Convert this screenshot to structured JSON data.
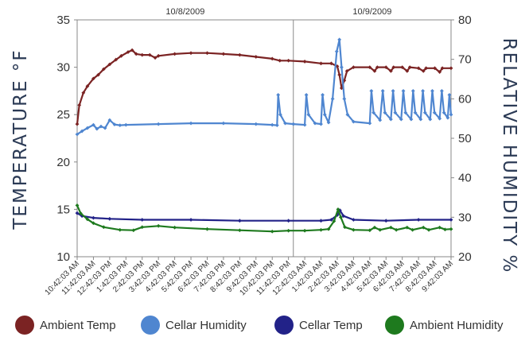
{
  "chart_data": {
    "type": "line",
    "y_left_label": "TEMPERATURE  °F",
    "y_right_label": "RELATIVE HUMIDITY %",
    "y_left_ticks": [
      "10",
      "15",
      "20",
      "25",
      "30",
      "35"
    ],
    "y_right_ticks": [
      "20",
      "30",
      "40",
      "50",
      "60",
      "70",
      "80"
    ],
    "y_left_lim": [
      10,
      35
    ],
    "y_right_lim": [
      20,
      80
    ],
    "date_labels": [
      "10/8/2009",
      "10/9/2009"
    ],
    "x_start": "2009-10-08T10:42:03",
    "x_end": "2009-10-09T09:42:03",
    "date_divider": "2009-10-09T00:00:00",
    "x_ticks": [
      "10:42:03 AM",
      "11:42:03 AM",
      "12:42:03 PM",
      "1:42:03 PM",
      "2:42:03 PM",
      "3:42:03 PM",
      "4:42:03 PM",
      "5:42:03 PM",
      "6:42:03 PM",
      "7:42:03 PM",
      "8:42:03 PM",
      "9:42:03 PM",
      "10:42:03 PM",
      "11:42:03 PM",
      "12:42:03 AM",
      "1:42:03 AM",
      "2:42:03 AM",
      "3:42:03 AM",
      "4:42:03 AM",
      "5:42:03 AM",
      "6:42:03 AM",
      "7:42:03 AM",
      "8:42:03 AM",
      "9:42:03 AM"
    ],
    "grid": false,
    "legend_position": "bottom",
    "series": [
      {
        "name": "Ambient Temp",
        "axis": "left",
        "color": "#7b2323",
        "marker": "diamond",
        "points": [
          [
            "2009-10-08T10:42:03",
            24.0
          ],
          [
            "2009-10-08T10:50:00",
            26.0
          ],
          [
            "2009-10-08T11:05:00",
            27.3
          ],
          [
            "2009-10-08T11:20:00",
            28.0
          ],
          [
            "2009-10-08T11:42:03",
            28.8
          ],
          [
            "2009-10-08T12:00:00",
            29.2
          ],
          [
            "2009-10-08T12:20:00",
            29.8
          ],
          [
            "2009-10-08T12:42:03",
            30.3
          ],
          [
            "2009-10-08T13:05:00",
            30.8
          ],
          [
            "2009-10-08T13:25:00",
            31.2
          ],
          [
            "2009-10-08T13:50:00",
            31.6
          ],
          [
            "2009-10-08T14:05:00",
            31.8
          ],
          [
            "2009-10-08T14:20:00",
            31.4
          ],
          [
            "2009-10-08T14:42:03",
            31.3
          ],
          [
            "2009-10-08T15:10:00",
            31.3
          ],
          [
            "2009-10-08T15:30:00",
            31.0
          ],
          [
            "2009-10-08T15:42:03",
            31.2
          ],
          [
            "2009-10-08T16:42:03",
            31.4
          ],
          [
            "2009-10-08T17:42:03",
            31.5
          ],
          [
            "2009-10-08T18:42:03",
            31.5
          ],
          [
            "2009-10-08T19:42:03",
            31.4
          ],
          [
            "2009-10-08T20:42:03",
            31.3
          ],
          [
            "2009-10-08T21:42:03",
            31.1
          ],
          [
            "2009-10-08T22:42:03",
            30.9
          ],
          [
            "2009-10-08T23:10:00",
            30.7
          ],
          [
            "2009-10-08T23:42:03",
            30.7
          ],
          [
            "2009-10-09T00:42:03",
            30.6
          ],
          [
            "2009-10-09T01:42:03",
            30.4
          ],
          [
            "2009-10-09T02:20:00",
            30.4
          ],
          [
            "2009-10-09T02:42:03",
            30.1
          ],
          [
            "2009-10-09T02:50:00",
            29.2
          ],
          [
            "2009-10-09T02:58:00",
            27.8
          ],
          [
            "2009-10-09T03:08:00",
            28.6
          ],
          [
            "2009-10-09T03:18:00",
            29.6
          ],
          [
            "2009-10-09T03:42:03",
            30.0
          ],
          [
            "2009-10-09T04:42:03",
            30.0
          ],
          [
            "2009-10-09T05:00:00",
            29.6
          ],
          [
            "2009-10-09T05:10:00",
            30.0
          ],
          [
            "2009-10-09T05:42:03",
            30.0
          ],
          [
            "2009-10-09T06:00:00",
            29.6
          ],
          [
            "2009-10-09T06:10:00",
            30.0
          ],
          [
            "2009-10-09T06:42:03",
            30.0
          ],
          [
            "2009-10-09T07:00:00",
            29.6
          ],
          [
            "2009-10-09T07:10:00",
            30.0
          ],
          [
            "2009-10-09T07:42:03",
            29.9
          ],
          [
            "2009-10-09T08:00:00",
            29.6
          ],
          [
            "2009-10-09T08:10:00",
            29.9
          ],
          [
            "2009-10-09T08:42:03",
            29.9
          ],
          [
            "2009-10-09T09:00:00",
            29.5
          ],
          [
            "2009-10-09T09:10:00",
            29.9
          ],
          [
            "2009-10-09T09:42:03",
            29.9
          ]
        ]
      },
      {
        "name": "Cellar Humidity",
        "axis": "right",
        "color": "#4f86d0",
        "marker": "diamond",
        "points": [
          [
            "2009-10-08T10:42:03",
            51.0
          ],
          [
            "2009-10-08T11:00:00",
            51.8
          ],
          [
            "2009-10-08T11:20:00",
            52.6
          ],
          [
            "2009-10-08T11:42:03",
            53.4
          ],
          [
            "2009-10-08T11:55:00",
            52.4
          ],
          [
            "2009-10-08T12:10:00",
            53.0
          ],
          [
            "2009-10-08T12:25:00",
            52.6
          ],
          [
            "2009-10-08T12:42:03",
            54.6
          ],
          [
            "2009-10-08T13:00:00",
            53.5
          ],
          [
            "2009-10-08T13:20:00",
            53.3
          ],
          [
            "2009-10-08T13:42:03",
            53.4
          ],
          [
            "2009-10-08T15:42:03",
            53.6
          ],
          [
            "2009-10-08T17:42:03",
            53.8
          ],
          [
            "2009-10-08T19:42:03",
            53.8
          ],
          [
            "2009-10-08T21:42:03",
            53.6
          ],
          [
            "2009-10-08T22:42:03",
            53.4
          ],
          [
            "2009-10-08T23:00:00",
            53.3
          ],
          [
            "2009-10-08T23:04:00",
            61.0
          ],
          [
            "2009-10-08T23:12:00",
            56.0
          ],
          [
            "2009-10-08T23:30:00",
            53.8
          ],
          [
            "2009-10-09T00:00:00",
            53.6
          ],
          [
            "2009-10-09T00:42:03",
            53.4
          ],
          [
            "2009-10-09T00:48:00",
            61.0
          ],
          [
            "2009-10-09T00:56:00",
            56.0
          ],
          [
            "2009-10-09T01:20:00",
            53.8
          ],
          [
            "2009-10-09T01:42:03",
            53.6
          ],
          [
            "2009-10-09T01:48:00",
            61.0
          ],
          [
            "2009-10-09T01:56:00",
            56.0
          ],
          [
            "2009-10-09T02:10:00",
            54.0
          ],
          [
            "2009-10-09T02:25:00",
            60.0
          ],
          [
            "2009-10-09T02:40:00",
            72.0
          ],
          [
            "2009-10-09T02:50:00",
            75.0
          ],
          [
            "2009-10-09T02:58:00",
            68.0
          ],
          [
            "2009-10-09T03:08:00",
            60.0
          ],
          [
            "2009-10-09T03:20:00",
            56.0
          ],
          [
            "2009-10-09T03:42:03",
            54.2
          ],
          [
            "2009-10-09T04:42:03",
            53.8
          ],
          [
            "2009-10-09T04:48:00",
            62.0
          ],
          [
            "2009-10-09T04:56:00",
            56.5
          ],
          [
            "2009-10-09T05:20:00",
            54.6
          ],
          [
            "2009-10-09T05:30:00",
            62.0
          ],
          [
            "2009-10-09T05:38:00",
            56.5
          ],
          [
            "2009-10-09T06:00:00",
            54.8
          ],
          [
            "2009-10-09T06:08:00",
            62.0
          ],
          [
            "2009-10-09T06:16:00",
            56.5
          ],
          [
            "2009-10-09T06:38:00",
            54.8
          ],
          [
            "2009-10-09T06:46:00",
            62.0
          ],
          [
            "2009-10-09T06:54:00",
            56.5
          ],
          [
            "2009-10-09T07:15:00",
            54.8
          ],
          [
            "2009-10-09T07:22:00",
            62.0
          ],
          [
            "2009-10-09T07:30:00",
            56.5
          ],
          [
            "2009-10-09T07:50:00",
            54.8
          ],
          [
            "2009-10-09T07:58:00",
            62.0
          ],
          [
            "2009-10-09T08:06:00",
            56.5
          ],
          [
            "2009-10-09T08:25:00",
            54.8
          ],
          [
            "2009-10-09T08:33:00",
            62.0
          ],
          [
            "2009-10-09T08:41:00",
            56.5
          ],
          [
            "2009-10-09T09:00:00",
            55.0
          ],
          [
            "2009-10-09T09:08:00",
            62.0
          ],
          [
            "2009-10-09T09:16:00",
            56.5
          ],
          [
            "2009-10-09T09:30:00",
            55.2
          ],
          [
            "2009-10-09T09:36:00",
            61.0
          ],
          [
            "2009-10-09T09:42:03",
            56.0
          ]
        ]
      },
      {
        "name": "Cellar Temp",
        "axis": "left",
        "color": "#222288",
        "marker": "diamond",
        "points": [
          [
            "2009-10-08T10:42:03",
            14.6
          ],
          [
            "2009-10-08T11:00:00",
            14.3
          ],
          [
            "2009-10-08T11:42:03",
            14.1
          ],
          [
            "2009-10-08T12:42:03",
            14.0
          ],
          [
            "2009-10-08T14:42:03",
            13.9
          ],
          [
            "2009-10-08T17:42:03",
            13.9
          ],
          [
            "2009-10-08T20:42:03",
            13.8
          ],
          [
            "2009-10-08T23:42:03",
            13.8
          ],
          [
            "2009-10-09T01:42:03",
            13.8
          ],
          [
            "2009-10-09T02:20:00",
            13.9
          ],
          [
            "2009-10-09T02:42:03",
            14.4
          ],
          [
            "2009-10-09T02:52:00",
            14.9
          ],
          [
            "2009-10-09T03:05:00",
            14.3
          ],
          [
            "2009-10-09T03:42:03",
            13.9
          ],
          [
            "2009-10-09T05:42:03",
            13.8
          ],
          [
            "2009-10-09T07:42:03",
            13.9
          ],
          [
            "2009-10-09T09:42:03",
            13.9
          ]
        ]
      },
      {
        "name": "Ambient Humidity",
        "axis": "right",
        "color": "#1e7a1e",
        "marker": "diamond",
        "points": [
          [
            "2009-10-08T10:42:03",
            33.0
          ],
          [
            "2009-10-08T10:55:00",
            31.0
          ],
          [
            "2009-10-08T11:20:00",
            29.5
          ],
          [
            "2009-10-08T11:42:03",
            28.5
          ],
          [
            "2009-10-08T12:20:00",
            27.5
          ],
          [
            "2009-10-08T13:20:00",
            26.8
          ],
          [
            "2009-10-08T14:10:00",
            26.7
          ],
          [
            "2009-10-08T14:42:03",
            27.5
          ],
          [
            "2009-10-08T15:42:03",
            27.8
          ],
          [
            "2009-10-08T16:42:03",
            27.4
          ],
          [
            "2009-10-08T18:42:03",
            27.0
          ],
          [
            "2009-10-08T20:42:03",
            26.7
          ],
          [
            "2009-10-08T22:42:03",
            26.4
          ],
          [
            "2009-10-08T23:42:03",
            26.6
          ],
          [
            "2009-10-09T00:42:03",
            26.6
          ],
          [
            "2009-10-09T01:42:03",
            26.8
          ],
          [
            "2009-10-09T02:10:00",
            27.0
          ],
          [
            "2009-10-09T02:30:00",
            29.0
          ],
          [
            "2009-10-09T02:45:00",
            32.0
          ],
          [
            "2009-10-09T02:55:00",
            30.0
          ],
          [
            "2009-10-09T03:10:00",
            27.5
          ],
          [
            "2009-10-09T03:42:03",
            26.8
          ],
          [
            "2009-10-09T04:42:03",
            26.7
          ],
          [
            "2009-10-09T05:00:00",
            27.4
          ],
          [
            "2009-10-09T05:20:00",
            26.8
          ],
          [
            "2009-10-09T06:00:00",
            27.4
          ],
          [
            "2009-10-09T06:20:00",
            26.8
          ],
          [
            "2009-10-09T07:00:00",
            27.4
          ],
          [
            "2009-10-09T07:20:00",
            26.8
          ],
          [
            "2009-10-09T08:00:00",
            27.4
          ],
          [
            "2009-10-09T08:20:00",
            26.8
          ],
          [
            "2009-10-09T09:00:00",
            27.4
          ],
          [
            "2009-10-09T09:20:00",
            26.9
          ],
          [
            "2009-10-09T09:42:03",
            27.0
          ]
        ]
      }
    ]
  }
}
